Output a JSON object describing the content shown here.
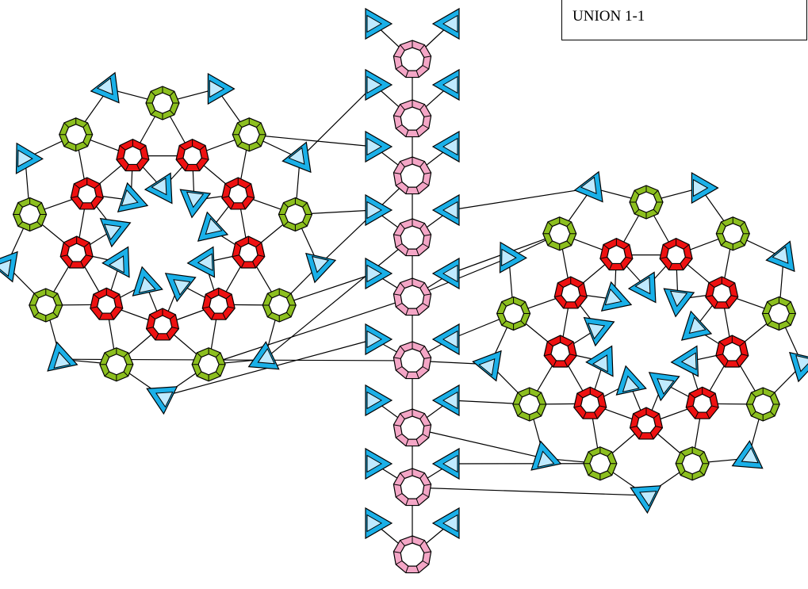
{
  "label": "UNION 1-1"
}
